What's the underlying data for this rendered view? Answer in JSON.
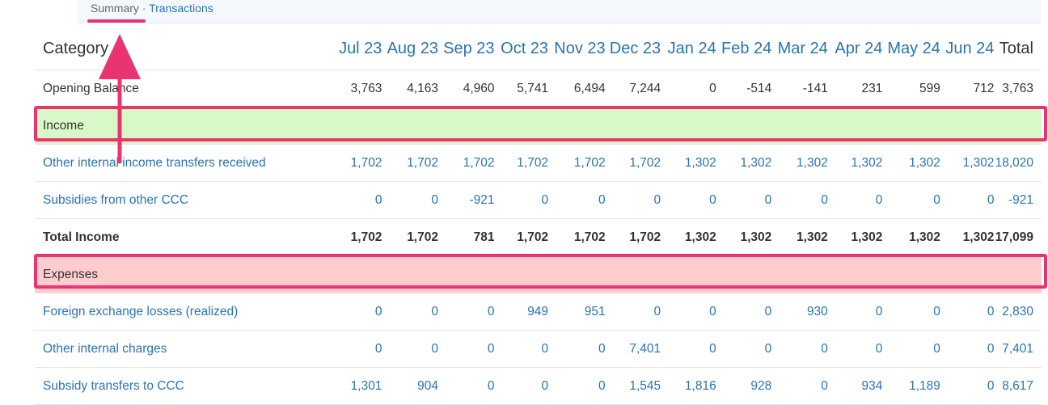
{
  "breadcrumb": {
    "summary": "Summary",
    "sep": " · ",
    "transactions": "Transactions"
  },
  "table": {
    "columns": [
      "Category",
      "Jul 23",
      "Aug 23",
      "Sep 23",
      "Oct 23",
      "Nov 23",
      "Dec 23",
      "Jan 24",
      "Feb 24",
      "Mar 24",
      "Apr 24",
      "May 24",
      "Jun 24",
      "Total"
    ],
    "opening": {
      "label": "Opening Balance",
      "values": [
        "3,763",
        "4,163",
        "4,960",
        "5,741",
        "6,494",
        "7,244",
        "0",
        "-514",
        "-141",
        "231",
        "599",
        "712",
        "3,763"
      ]
    },
    "income_section": "Income",
    "income_rows": [
      {
        "label": "Other internal income transfers received",
        "values": [
          "1,702",
          "1,702",
          "1,702",
          "1,702",
          "1,702",
          "1,702",
          "1,302",
          "1,302",
          "1,302",
          "1,302",
          "1,302",
          "1,302",
          "18,020"
        ]
      },
      {
        "label": "Subsidies from other CCC",
        "values": [
          "0",
          "0",
          "-921",
          "0",
          "0",
          "0",
          "0",
          "0",
          "0",
          "0",
          "0",
          "0",
          "-921"
        ]
      }
    ],
    "total_income": {
      "label": "Total Income",
      "values": [
        "1,702",
        "1,702",
        "781",
        "1,702",
        "1,702",
        "1,702",
        "1,302",
        "1,302",
        "1,302",
        "1,302",
        "1,302",
        "1,302",
        "17,099"
      ]
    },
    "expense_section": "Expenses",
    "expense_rows": [
      {
        "label": "Foreign exchange losses (realized)",
        "values": [
          "0",
          "0",
          "0",
          "949",
          "951",
          "0",
          "0",
          "0",
          "930",
          "0",
          "0",
          "0",
          "2,830"
        ]
      },
      {
        "label": "Other internal charges",
        "values": [
          "0",
          "0",
          "0",
          "0",
          "0",
          "7,401",
          "0",
          "0",
          "0",
          "0",
          "0",
          "0",
          "7,401"
        ]
      },
      {
        "label": "Subsidy transfers to CCC",
        "values": [
          "1,301",
          "904",
          "0",
          "0",
          "0",
          "1,545",
          "1,816",
          "928",
          "0",
          "934",
          "1,189",
          "0",
          "8,617"
        ]
      }
    ]
  },
  "colors": {
    "link": "#2a73b4",
    "highlight": "#ea3472",
    "income_bg": "#d8f8c8",
    "expense_bg": "#ffcdcd"
  },
  "icons": {
    "annotation": "arrow-up-icon"
  }
}
